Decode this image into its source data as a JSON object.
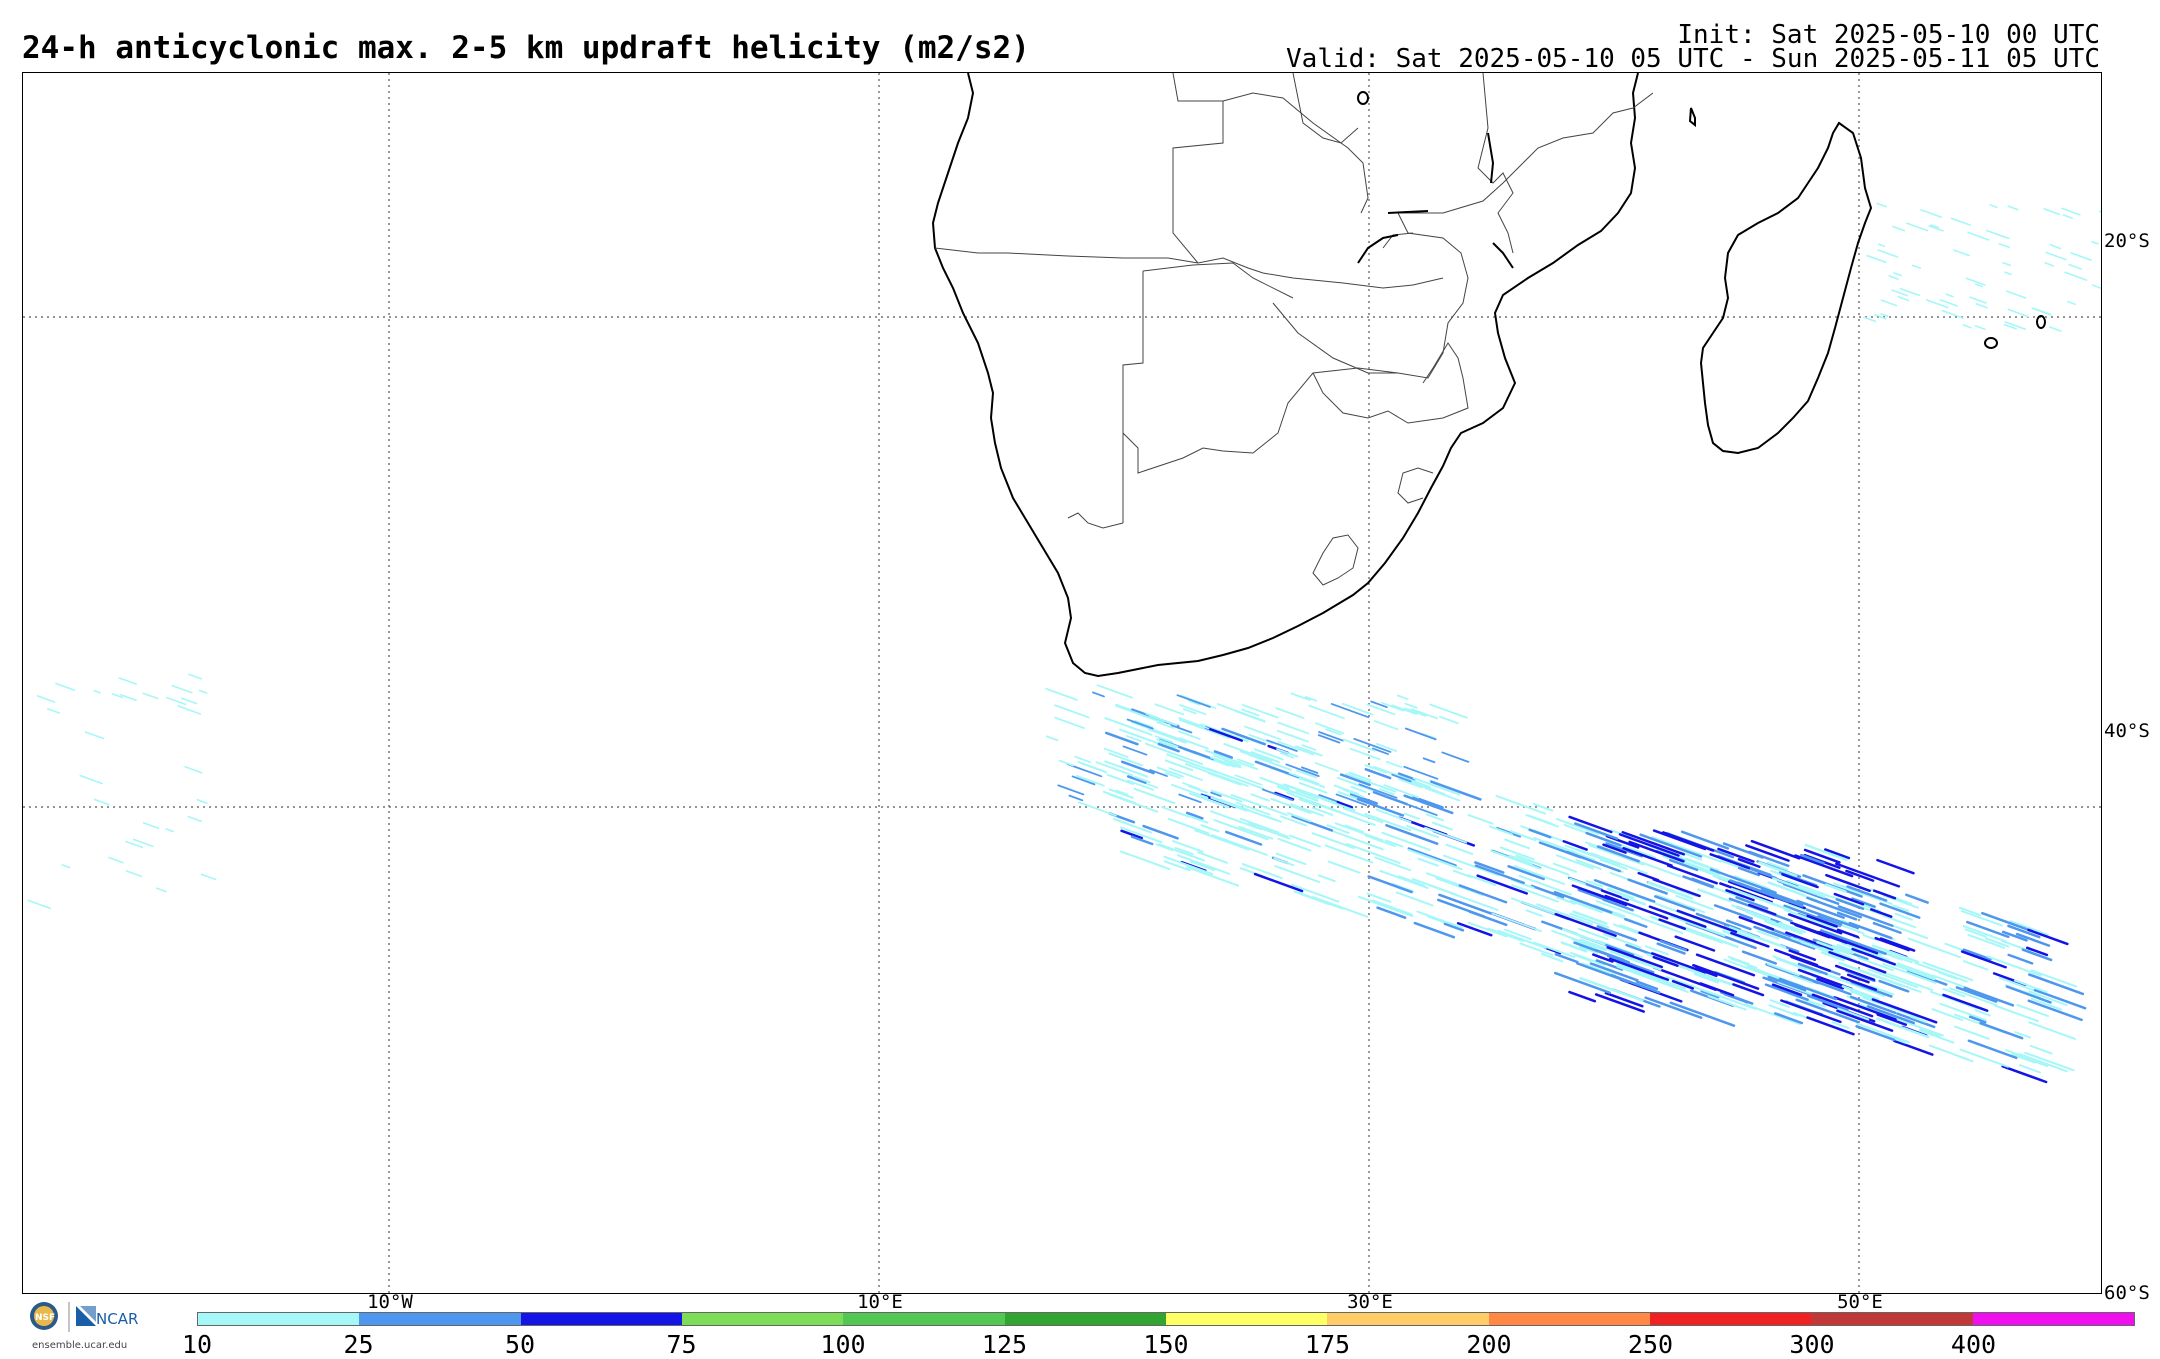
{
  "header": {
    "title": "24-h anticyclonic max. 2-5 km updraft helicity (m2/s2)",
    "init": "Init: Sat 2025-05-10 00 UTC",
    "valid": "Valid: Sat 2025-05-10 05 UTC - Sun 2025-05-11 05 UTC"
  },
  "map": {
    "lat_labels": [
      "20°S",
      "40°S",
      "60°S"
    ],
    "lon_labels": [
      "10°W",
      "10°E",
      "30°E",
      "50°E"
    ],
    "feature": "updraft helicity swaths south-east of South Africa and south of Madagascar"
  },
  "colorbar": {
    "labels": [
      "10",
      "25",
      "50",
      "75",
      "100",
      "125",
      "150",
      "175",
      "200",
      "250",
      "300",
      "400"
    ],
    "colors": [
      "#a6f7f7",
      "#4f97ee",
      "#1414e6",
      "#7ddc58",
      "#52c752",
      "#31a431",
      "#ffff66",
      "#ffcc66",
      "#ff8844",
      "#ee2222",
      "#c03838",
      "#ee11ee"
    ]
  },
  "footer": {
    "logo_text": "NCAR",
    "logo_sub": "NSF",
    "url": "ensemble.ucar.edu"
  }
}
